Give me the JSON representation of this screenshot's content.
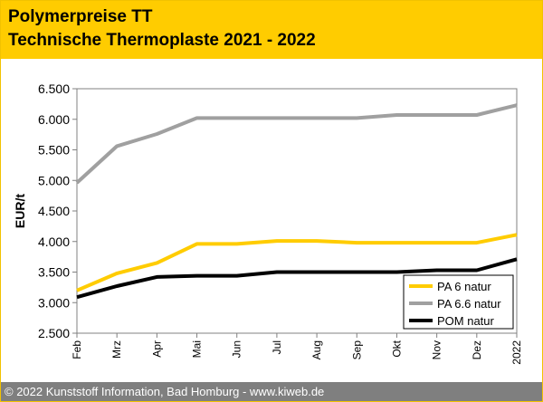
{
  "header": {
    "title_line1": "Polymerpreise TT",
    "title_line2": "Technische Thermoplaste 2021 - 2022"
  },
  "footer": {
    "text": "© 2022 Kunststoff Information, Bad Homburg - www.kiweb.de"
  },
  "colors": {
    "header_bg": "#ffcc00",
    "footer_bg": "#7f7f7f",
    "pa6": "#ffcc00",
    "pa66": "#a0a0a0",
    "pom": "#000000"
  },
  "chart_data": {
    "type": "line",
    "title": "",
    "xlabel": "",
    "ylabel": "EUR/t",
    "categories": [
      "Feb",
      "Mrz",
      "Apr",
      "Mai",
      "Jun",
      "Jul",
      "Aug",
      "Sep",
      "Okt",
      "Nov",
      "Dez",
      "2022"
    ],
    "ylim": [
      2500,
      6500
    ],
    "yticks": [
      2500,
      3000,
      3500,
      4000,
      4500,
      5000,
      5500,
      6000,
      6500
    ],
    "ytick_labels": [
      "2.500",
      "3.000",
      "3.500",
      "4.000",
      "4.500",
      "5.000",
      "5.500",
      "6.000",
      "6.500"
    ],
    "grid": false,
    "legend_position": "bottom-right",
    "series": [
      {
        "name": "PA 6 natur",
        "color": "#ffcc00",
        "values": [
          3200,
          3480,
          3650,
          3960,
          3960,
          4010,
          4010,
          3980,
          3980,
          3980,
          3980,
          4110
        ]
      },
      {
        "name": "PA 6.6 natur",
        "color": "#a0a0a0",
        "values": [
          4960,
          5560,
          5760,
          6020,
          6020,
          6020,
          6020,
          6020,
          6070,
          6070,
          6070,
          6230
        ]
      },
      {
        "name": "POM natur",
        "color": "#000000",
        "values": [
          3090,
          3270,
          3420,
          3440,
          3440,
          3500,
          3500,
          3500,
          3500,
          3530,
          3530,
          3710
        ]
      }
    ]
  }
}
